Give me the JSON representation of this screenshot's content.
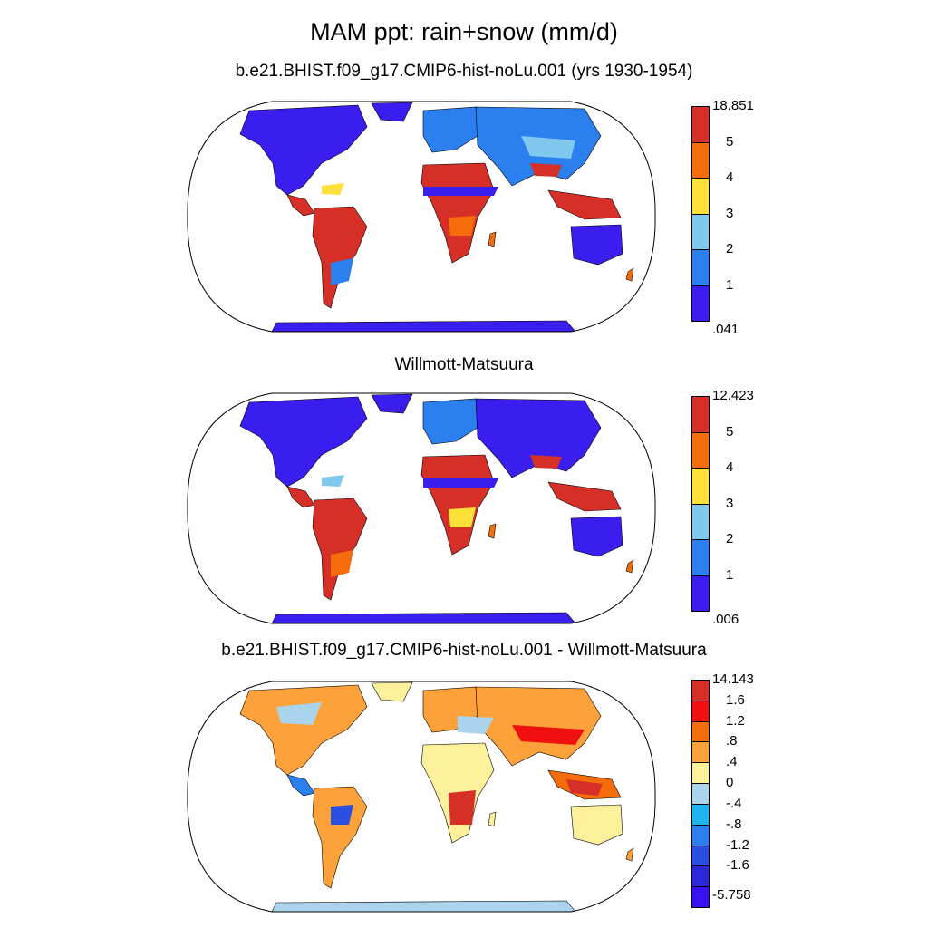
{
  "title": "MAM ppt: rain+snow (mm/d)",
  "panels": [
    {
      "title": "b.e21.BHIST.f09_g17.CMIP6-hist-noLu.001 (yrs 1930-1954)",
      "colorbar": {
        "labels": [
          "18.851",
          "5",
          "4",
          "3",
          "2",
          "1",
          ".041"
        ],
        "colors": [
          "#d62f27",
          "#f46d0a",
          "#fde13a",
          "#7fc8ee",
          "#2b7fee",
          "#3a1ef0"
        ]
      }
    },
    {
      "title": "Willmott-Matsuura",
      "colorbar": {
        "labels": [
          "12.423",
          "5",
          "4",
          "3",
          "2",
          "1",
          ".006"
        ],
        "colors": [
          "#d62f27",
          "#f46d0a",
          "#fde13a",
          "#7fc8ee",
          "#2b7fee",
          "#3a1ef0"
        ]
      }
    },
    {
      "title": "b.e21.BHIST.f09_g17.CMIP6-hist-noLu.001 - Willmott-Matsuura",
      "colorbar": {
        "labels": [
          "14.143",
          "1.6",
          "1.2",
          ".8",
          ".4",
          "0",
          "-.4",
          "-.8",
          "-1.2",
          "-1.6",
          "-5.758"
        ],
        "colors": [
          "#d62f27",
          "#f01010",
          "#f46d0a",
          "#fda23a",
          "#fdf09a",
          "#aad4ee",
          "#1eb4f0",
          "#2b7fee",
          "#2b4fe0",
          "#2a28d8",
          "#3a10f0"
        ]
      }
    }
  ]
}
